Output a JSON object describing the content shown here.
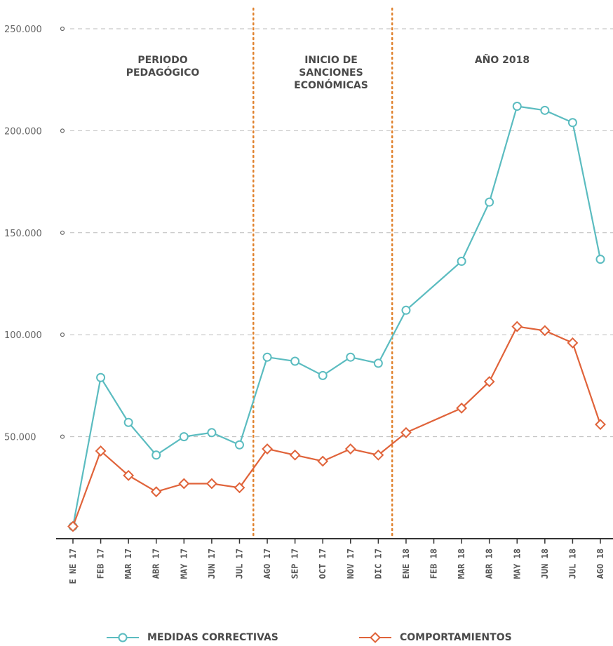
{
  "chart_data": {
    "type": "line",
    "categories": [
      "E NE 17",
      "FEB 17",
      "MAR 17",
      "ABR 17",
      "MAY 17",
      "JUN 17",
      "JUL 17",
      "AGO 17",
      "SEP 17",
      "OCT 17",
      "NOV 17",
      "DIC 17",
      "ENE 18",
      "FEB 18",
      "MAR 18",
      "ABR 18",
      "MAY 18",
      "JUN 18",
      "JUL 18",
      "AGO 18"
    ],
    "ylim": [
      0,
      250000
    ],
    "yticks": [
      50000,
      100000,
      150000,
      200000,
      250000
    ],
    "ytick_labels": [
      "50.000",
      "100.000",
      "150.000",
      "200.000",
      "250.000"
    ],
    "grid": true,
    "legend_placement": "bottom",
    "series": [
      {
        "name": "MEDIDAS CORRECTIVAS",
        "color": "#5bbcc0",
        "marker": "circle",
        "values": [
          6000,
          79000,
          57000,
          41000,
          50000,
          52000,
          46000,
          89000,
          87000,
          80000,
          89000,
          86000,
          112000,
          null,
          136000,
          165000,
          212000,
          210000,
          204000,
          137000
        ]
      },
      {
        "name": "COMPORTAMIENTOS",
        "color": "#e0633a",
        "marker": "diamond",
        "values": [
          6000,
          43000,
          31000,
          23000,
          27000,
          27000,
          25000,
          44000,
          41000,
          38000,
          44000,
          41000,
          52000,
          null,
          64000,
          77000,
          104000,
          102000,
          96000,
          56000
        ]
      }
    ],
    "period_dividers_after": [
      "JUL 17",
      "DIC 17"
    ],
    "period_labels": [
      {
        "lines": [
          "PERIODO",
          "PEDAGÓGICO"
        ]
      },
      {
        "lines": [
          "INICIO DE",
          "SANCIONES",
          "ECONÓMICAS"
        ]
      },
      {
        "lines": [
          "AÑO 2018"
        ]
      }
    ],
    "divider_color": "#e0822e",
    "grid_color": "#bbbbbb",
    "axis_color": "#333333"
  }
}
